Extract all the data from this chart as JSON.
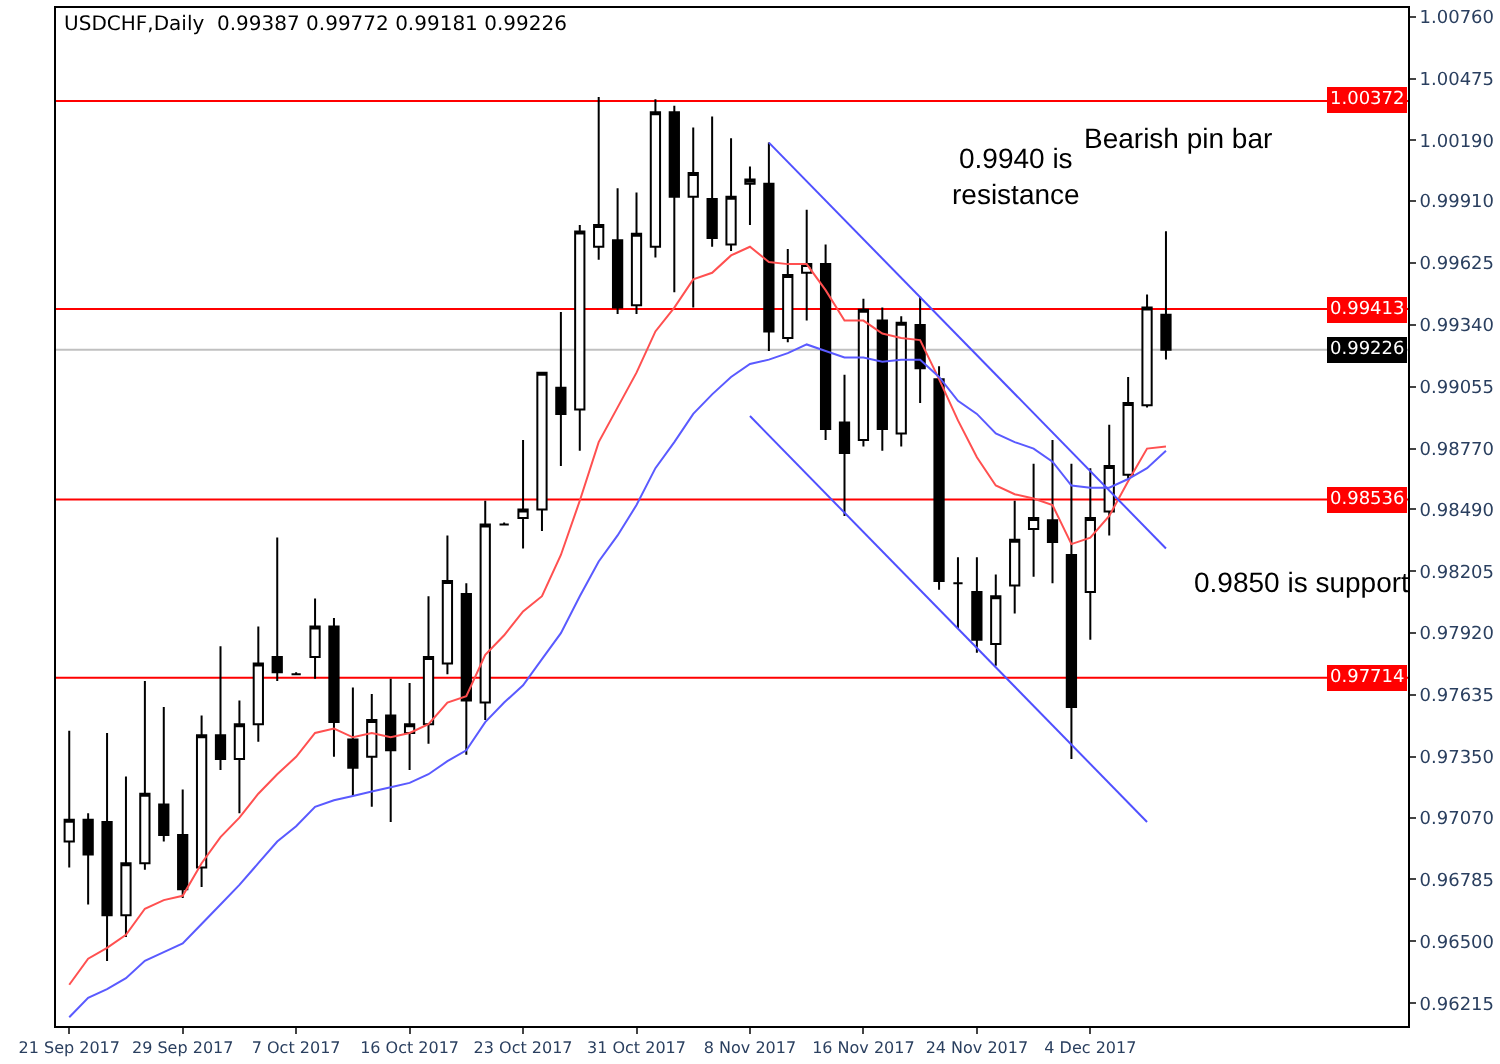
{
  "chart_data": {
    "type": "candlestick",
    "title": "USDCHF,Daily  0.99387 0.99772 0.99181 0.99226",
    "categories": [
      "21 Sep 2017",
      null,
      null,
      null,
      null,
      null,
      "29 Sep 2017",
      null,
      null,
      null,
      null,
      null,
      "7 Oct 2017",
      null,
      null,
      null,
      null,
      null,
      "16 Oct 2017",
      null,
      null,
      null,
      null,
      null,
      "23 Oct 2017",
      null,
      null,
      null,
      null,
      null,
      "31 Oct 2017",
      null,
      null,
      null,
      null,
      null,
      "8 Nov 2017",
      null,
      null,
      null,
      null,
      null,
      "16 Nov 2017",
      null,
      null,
      null,
      null,
      null,
      "24 Nov 2017",
      null,
      null,
      null,
      null,
      null,
      "4 Dec 2017",
      null,
      null,
      null,
      null
    ],
    "ohlc": [
      [
        0.9696,
        0.9747,
        0.9684,
        0.9706
      ],
      [
        0.9706,
        0.9709,
        0.9667,
        0.969
      ],
      [
        0.9705,
        0.9746,
        0.9641,
        0.9662
      ],
      [
        0.9662,
        0.9726,
        0.9652,
        0.9686
      ],
      [
        0.9686,
        0.977,
        0.9683,
        0.9718
      ],
      [
        0.9713,
        0.9758,
        0.9696,
        0.9699
      ],
      [
        0.9699,
        0.972,
        0.967,
        0.9674
      ],
      [
        0.9684,
        0.9754,
        0.9675,
        0.9745
      ],
      [
        0.9745,
        0.9786,
        0.9729,
        0.9734
      ],
      [
        0.9734,
        0.9761,
        0.9709,
        0.975
      ],
      [
        0.975,
        0.9795,
        0.9742,
        0.9778
      ],
      [
        0.9781,
        0.9836,
        0.977,
        0.9774
      ],
      [
        0.9773,
        0.9774,
        0.9773,
        0.9773
      ],
      [
        0.9781,
        0.9808,
        0.9771,
        0.9795
      ],
      [
        0.9795,
        0.9799,
        0.9735,
        0.9751
      ],
      [
        0.9743,
        0.9767,
        0.9717,
        0.973
      ],
      [
        0.9735,
        0.9764,
        0.9712,
        0.9752
      ],
      [
        0.9754,
        0.9771,
        0.9705,
        0.9738
      ],
      [
        0.9746,
        0.9769,
        0.9729,
        0.975
      ],
      [
        0.975,
        0.9809,
        0.9741,
        0.9781
      ],
      [
        0.9778,
        0.9837,
        0.9773,
        0.9816
      ],
      [
        0.981,
        0.9815,
        0.9736,
        0.9761
      ],
      [
        0.976,
        0.9853,
        0.9752,
        0.9842
      ],
      [
        0.9842,
        0.9843,
        0.9842,
        0.9842
      ],
      [
        0.9845,
        0.9881,
        0.9831,
        0.9849
      ],
      [
        0.9849,
        0.9912,
        0.9839,
        0.9912
      ],
      [
        0.9905,
        0.994,
        0.9869,
        0.9893
      ],
      [
        0.9895,
        0.998,
        0.9876,
        0.9977
      ],
      [
        0.997,
        1.0039,
        0.9964,
        0.998
      ],
      [
        0.9973,
        0.9997,
        0.9939,
        0.9942
      ],
      [
        0.9943,
        0.9995,
        0.9939,
        0.9976
      ],
      [
        0.997,
        1.0038,
        0.9965,
        1.0032
      ],
      [
        1.0032,
        1.0035,
        0.9949,
        0.9993
      ],
      [
        0.9993,
        1.0025,
        0.9942,
        1.0004
      ],
      [
        0.9992,
        1.003,
        0.997,
        0.9974
      ],
      [
        0.9971,
        1.002,
        0.9968,
        0.9993
      ],
      [
        0.9999,
        1.0007,
        0.998,
        1.0001
      ],
      [
        0.9999,
        1.0018,
        0.9922,
        0.9931
      ],
      [
        0.9928,
        0.9969,
        0.9926,
        0.9957
      ],
      [
        0.9958,
        0.9987,
        0.9936,
        0.9962
      ],
      [
        0.9962,
        0.9971,
        0.9881,
        0.9886
      ],
      [
        0.9889,
        0.9911,
        0.9846,
        0.9875
      ],
      [
        0.9881,
        0.9946,
        0.9878,
        0.9941
      ],
      [
        0.9936,
        0.9942,
        0.9876,
        0.9886
      ],
      [
        0.9884,
        0.9938,
        0.9878,
        0.9935
      ],
      [
        0.9934,
        0.9947,
        0.9898,
        0.9914
      ],
      [
        0.9909,
        0.9915,
        0.9812,
        0.9816
      ],
      [
        0.9815,
        0.9827,
        0.9794,
        0.9815
      ],
      [
        0.9811,
        0.9827,
        0.9783,
        0.9789
      ],
      [
        0.9787,
        0.9819,
        0.9777,
        0.9809
      ],
      [
        0.9814,
        0.9853,
        0.9801,
        0.9835
      ],
      [
        0.984,
        0.987,
        0.9818,
        0.9845
      ],
      [
        0.9844,
        0.9881,
        0.9815,
        0.9834
      ],
      [
        0.9828,
        0.987,
        0.9734,
        0.9758
      ],
      [
        0.9811,
        0.9868,
        0.9789,
        0.9845
      ],
      [
        0.9848,
        0.9888,
        0.9837,
        0.9869
      ],
      [
        0.9865,
        0.991,
        0.9863,
        0.9898
      ],
      [
        0.9897,
        0.9948,
        0.9896,
        0.9942
      ],
      [
        0.99387,
        0.99772,
        0.99181,
        0.99226
      ]
    ],
    "series": [
      {
        "type": "line",
        "color": "#ff5050",
        "values": [
          0.963,
          0.9642,
          0.9647,
          0.9653,
          0.9665,
          0.9669,
          0.9671,
          0.9686,
          0.9698,
          0.9707,
          0.9718,
          0.9727,
          0.9735,
          0.9746,
          0.9748,
          0.9744,
          0.9746,
          0.9744,
          0.9746,
          0.975,
          0.976,
          0.9763,
          0.9782,
          0.9791,
          0.9802,
          0.9809,
          0.9828,
          0.9853,
          0.988,
          0.9896,
          0.9912,
          0.9931,
          0.9942,
          0.9955,
          0.9958,
          0.9966,
          0.997,
          0.9963,
          0.9962,
          0.9962,
          0.995,
          0.9936,
          0.9936,
          0.993,
          0.9928,
          0.9927,
          0.9909,
          0.989,
          0.9873,
          0.986,
          0.9856,
          0.9854,
          0.9851,
          0.9833,
          0.9836,
          0.9846,
          0.9862,
          0.9877,
          0.9878
        ]
      },
      {
        "type": "line",
        "color": "#5a5aff",
        "values": [
          0.9615,
          0.9624,
          0.9628,
          0.9633,
          0.9641,
          0.9645,
          0.9649,
          0.9658,
          0.9667,
          0.9676,
          0.9686,
          0.9696,
          0.9703,
          0.9712,
          0.9715,
          0.9717,
          0.9719,
          0.9721,
          0.9723,
          0.9727,
          0.9733,
          0.9738,
          0.9751,
          0.976,
          0.9768,
          0.978,
          0.9792,
          0.9809,
          0.9825,
          0.9837,
          0.9851,
          0.9868,
          0.988,
          0.9893,
          0.9902,
          0.991,
          0.9916,
          0.9918,
          0.9921,
          0.9925,
          0.9922,
          0.9919,
          0.9919,
          0.9917,
          0.9918,
          0.9918,
          0.991,
          0.9899,
          0.9893,
          0.9884,
          0.988,
          0.9877,
          0.9871,
          0.986,
          0.9859,
          0.9859,
          0.9863,
          0.9868,
          0.9876
        ]
      },
      {
        "type": "line",
        "color": "#5050ff",
        "values": [
          null,
          null,
          null,
          null,
          null,
          null,
          null,
          null,
          null,
          null,
          null,
          null,
          null,
          null,
          null,
          null,
          null,
          null,
          null,
          null,
          null,
          null,
          null,
          null,
          null,
          null,
          null,
          null,
          null,
          null,
          null,
          null,
          null,
          null,
          null,
          null,
          null,
          1.0018,
          null,
          null,
          null,
          null,
          null,
          null,
          null,
          null,
          null,
          null,
          null,
          null,
          null,
          null,
          null,
          null,
          null,
          null,
          null,
          null,
          0.9831
        ]
      },
      {
        "type": "line",
        "color": "#5050ff",
        "values": [
          null,
          null,
          null,
          null,
          null,
          null,
          null,
          null,
          null,
          null,
          null,
          null,
          null,
          null,
          null,
          null,
          null,
          null,
          null,
          null,
          null,
          null,
          null,
          null,
          null,
          null,
          null,
          null,
          null,
          null,
          null,
          null,
          null,
          null,
          null,
          null,
          0.9892,
          null,
          null,
          null,
          null,
          null,
          null,
          null,
          null,
          null,
          null,
          null,
          null,
          null,
          null,
          null,
          null,
          null,
          null,
          null,
          null,
          0.9705,
          null
        ]
      }
    ],
    "ylim": [
      0.9611,
      1.008
    ],
    "yticks": [
      {
        "value": 1.0076,
        "label": "1.00760"
      },
      1.00475,
      {
        "value": 1.0019,
        "label": "1.00190"
      },
      {
        "value": 0.9991,
        "label": "0.99910"
      },
      0.99625,
      {
        "value": 0.9934,
        "label": "0.99340"
      },
      0.99055,
      {
        "value": 0.9877,
        "label": "0.98770"
      },
      {
        "value": 0.9849,
        "label": "0.98490"
      },
      0.98205,
      {
        "value": 0.9792,
        "label": "0.97920"
      },
      0.97635,
      {
        "value": 0.9735,
        "label": "0.97350"
      },
      {
        "value": 0.9707,
        "label": "0.97070"
      },
      0.96785,
      {
        "value": 0.965,
        "label": "0.96500"
      },
      0.96215
    ],
    "ref_lines": [
      {
        "axis": "y",
        "value": 1.00372,
        "label": "1.00372",
        "color": "#ff0000"
      },
      {
        "axis": "y",
        "value": 0.99413,
        "label": "0.99413",
        "color": "#ff0000"
      },
      {
        "axis": "y",
        "value": 0.99226,
        "label": "0.99226",
        "color": "#c0c0c0"
      },
      {
        "axis": "y",
        "value": 0.98536,
        "label": "0.98536",
        "color": "#ff0000"
      },
      {
        "axis": "y",
        "value": 0.97714,
        "label": "0.97714",
        "color": "#ff0000"
      }
    ],
    "annotations": [
      "Bearish pin bar",
      "0.9940 is\nresistance",
      "0.9850 is support"
    ]
  }
}
